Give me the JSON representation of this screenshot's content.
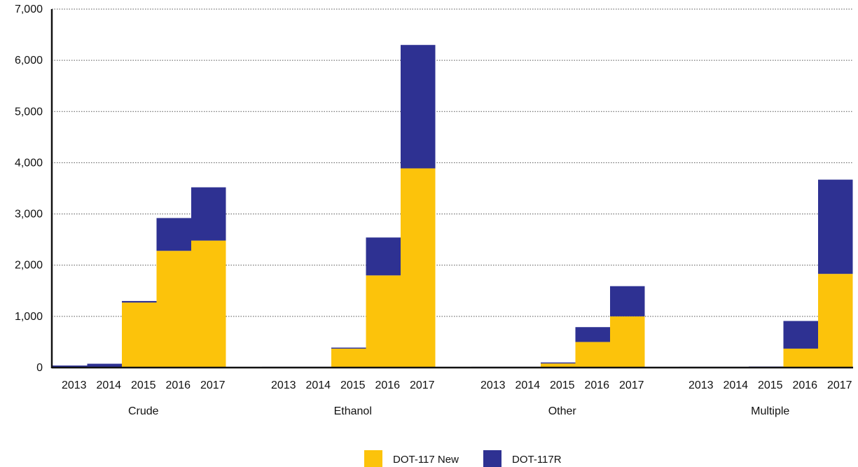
{
  "chart_data": {
    "type": "bar",
    "stacked": true,
    "groups": [
      "Crude",
      "Ethanol",
      "Other",
      "Multiple"
    ],
    "years": [
      "2013",
      "2014",
      "2015",
      "2016",
      "2017"
    ],
    "ylim": [
      0,
      7000
    ],
    "yticks": [
      "0",
      "1,000",
      "2,000",
      "3,000",
      "4,000",
      "5,000",
      "6,000",
      "7,000"
    ],
    "ytick_values": [
      0,
      1000,
      2000,
      3000,
      4000,
      5000,
      6000,
      7000
    ],
    "grid": "horizontal dotted",
    "legend_position": "bottom-center",
    "series": [
      {
        "name": "DOT-117 New",
        "color": "#FCC30B",
        "values": [
          [
            0,
            0,
            1270,
            2280,
            2480
          ],
          [
            0,
            0,
            370,
            1800,
            3890
          ],
          [
            0,
            0,
            80,
            500,
            1000
          ],
          [
            0,
            0,
            10,
            370,
            1830
          ]
        ]
      },
      {
        "name": "DOT-117R",
        "color": "#2E3192",
        "values": [
          [
            40,
            75,
            30,
            640,
            1040
          ],
          [
            15,
            15,
            20,
            740,
            2410
          ],
          [
            15,
            15,
            20,
            290,
            590
          ],
          [
            15,
            15,
            10,
            540,
            1840
          ]
        ]
      }
    ]
  }
}
